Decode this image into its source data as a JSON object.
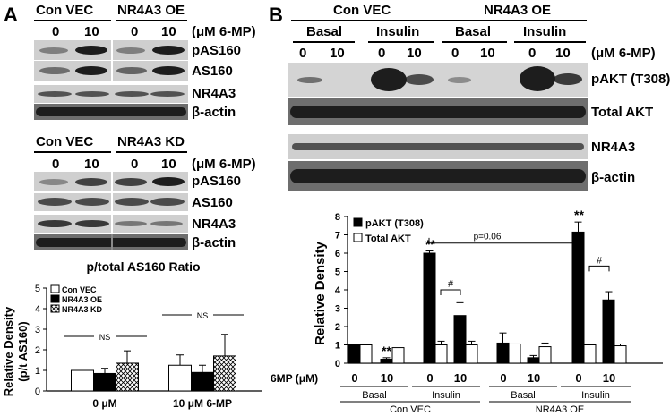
{
  "panel_a": {
    "letter": "A",
    "top": {
      "group_con": "Con VEC",
      "group_oe": "NR4A3 OE",
      "doses": [
        "0",
        "10",
        "0",
        "10"
      ],
      "dose_unit": "(μM 6-MP)",
      "rows": [
        "pAS160",
        "AS160",
        "NR4A3",
        "β-actin"
      ]
    },
    "middle": {
      "group_con": "Con VEC",
      "group_kd": "NR4A3 KD",
      "doses": [
        "0",
        "10",
        "0",
        "10"
      ],
      "dose_unit": "(μM 6-MP)",
      "rows": [
        "pAS160",
        "AS160",
        "NR4A3",
        "β-actin"
      ]
    }
  },
  "panel_b": {
    "letter": "B",
    "group_con": "Con VEC",
    "group_oe": "NR4A3 OE",
    "conditions": [
      "Basal",
      "Insulin",
      "Basal",
      "Insulin"
    ],
    "doses": [
      "0",
      "10",
      "0",
      "10",
      "0",
      "10",
      "0",
      "10"
    ],
    "dose_unit": "(μM 6-MP)",
    "rows": [
      "pAKT (T308)",
      "Total AKT",
      "NR4A3",
      "β-actin"
    ]
  },
  "chart_data": [
    {
      "type": "bar",
      "title": "p/total AS160 Ratio",
      "ylabel": "Relative Density\n(p/t AS160)",
      "categories": [
        "0 μM",
        "10 μM 6-MP"
      ],
      "series": [
        {
          "name": "Con VEC",
          "values": [
            1.0,
            1.25
          ],
          "errors": [
            0.0,
            0.5
          ]
        },
        {
          "name": "NR4A3 OE",
          "values": [
            0.85,
            0.9
          ],
          "errors": [
            0.25,
            0.35
          ]
        },
        {
          "name": "NR4A3 KD",
          "values": [
            1.35,
            1.7
          ],
          "errors": [
            0.6,
            1.05
          ]
        }
      ],
      "ylim": [
        0,
        5
      ],
      "yticks": [
        "0",
        "1",
        "2",
        "3",
        "4",
        "5"
      ],
      "annotations": [
        "NS",
        "NS"
      ],
      "legend": "top-left",
      "colors": {
        "Con VEC": "#ffffff",
        "NR4A3 OE": "#000000",
        "NR4A3 KD": "hatched"
      }
    },
    {
      "type": "bar",
      "ylabel": "Relative Density",
      "x_prefix": "6MP (μM)",
      "categories": [
        "0",
        "10",
        "0",
        "10",
        "0",
        "10",
        "0",
        "10"
      ],
      "condition_labels": [
        "Basal",
        "Insulin",
        "Basal",
        "Insulin"
      ],
      "group_labels": [
        "Con VEC",
        "NR4A3 OE"
      ],
      "series": [
        {
          "name": "pAKT (T308)",
          "values": [
            1.0,
            0.22,
            6.0,
            2.6,
            1.1,
            0.3,
            7.15,
            3.45
          ],
          "errors": [
            0.0,
            0.08,
            0.12,
            0.7,
            0.55,
            0.12,
            0.55,
            0.45
          ]
        },
        {
          "name": "Total AKT",
          "values": [
            1.0,
            0.85,
            1.0,
            1.0,
            1.05,
            0.9,
            1.0,
            0.95
          ],
          "errors": [
            0.0,
            0.0,
            0.2,
            0.2,
            0.0,
            0.2,
            0.0,
            0.1
          ]
        }
      ],
      "ylim": [
        0,
        8
      ],
      "yticks": [
        "0",
        "1",
        "2",
        "3",
        "4",
        "5",
        "6",
        "7",
        "8"
      ],
      "annotations": {
        "stars_basal_10": "**",
        "stars_insulin_con": "**",
        "stars_insulin_oe": "**",
        "hash_1": "#",
        "hash_2": "#",
        "p_value": "p=0.06"
      },
      "legend": "top-left",
      "colors": {
        "pAKT (T308)": "#000000",
        "Total AKT": "#ffffff"
      }
    }
  ]
}
